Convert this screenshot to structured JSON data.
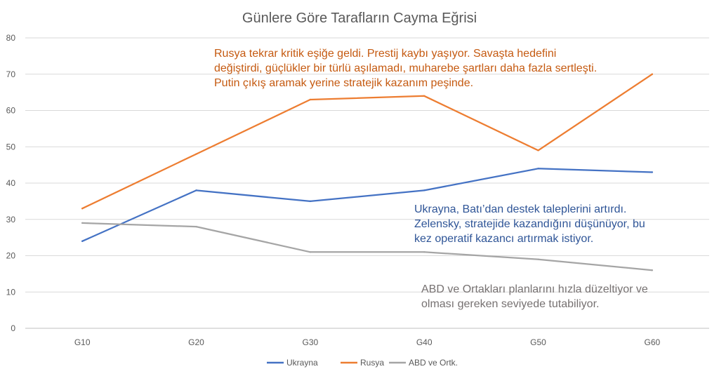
{
  "chart_data": {
    "type": "line",
    "title": "Günlere Göre Tarafların Cayma Eğrisi",
    "categories": [
      "G10",
      "G20",
      "G30",
      "G40",
      "G50",
      "G60"
    ],
    "ylim": [
      0,
      80
    ],
    "yticks": [
      0,
      10,
      20,
      30,
      40,
      50,
      60,
      70,
      80
    ],
    "grid": true,
    "legend_position": "bottom",
    "series": [
      {
        "name": "Ukrayna",
        "color": "#4472C4",
        "values": [
          24,
          38,
          35,
          38,
          44,
          43
        ]
      },
      {
        "name": "Rusya",
        "color": "#ED7D31",
        "values": [
          33,
          48,
          63,
          64,
          49,
          70
        ]
      },
      {
        "name": "ABD ve Ortk.",
        "color": "#A5A5A5",
        "values": [
          29,
          28,
          21,
          21,
          19,
          16
        ]
      }
    ],
    "annotations": [
      {
        "color": "#C55A11",
        "lines": [
          "Rusya tekrar kritik eşiğe geldi. Prestij kaybı yaşıyor. Savaşta hedefini",
          "değiştirdi, güçlükler bir türlü aşılamadı, muharebe şartları daha fazla sertleşti.",
          "Putin çıkış aramak yerine stratejik kazanım peşinde."
        ]
      },
      {
        "color": "#2F5597",
        "lines": [
          "Ukrayna, Batı’dan destek taleplerini artırdı.",
          "Zelensky, stratejide kazandığını düşünüyor, bu",
          "kez operatif kazancı artırmak istiyor."
        ]
      },
      {
        "color": "#767171",
        "lines": [
          "ABD ve Ortakları planlarını hızla düzeltiyor ve",
          "olması gereken seviyede tutabiliyor."
        ]
      }
    ]
  }
}
